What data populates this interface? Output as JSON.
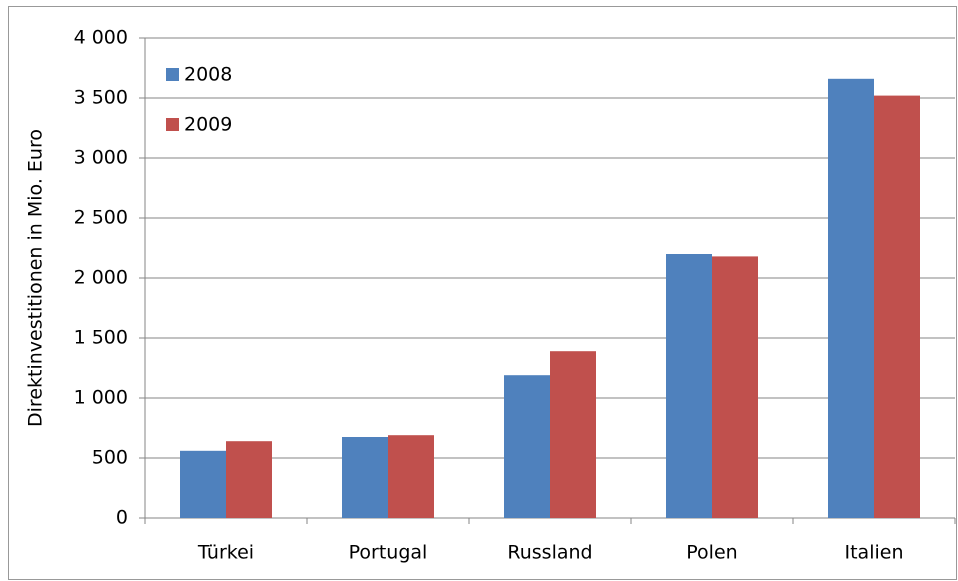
{
  "chart_data": {
    "type": "bar",
    "y_label": "Direktinvestitionen in Mio. Euro",
    "categories": [
      "Türkei",
      "Portugal",
      "Russland",
      "Polen",
      "Italien"
    ],
    "series": [
      {
        "name": "2008",
        "color": "#4f81bd",
        "values": [
          560,
          675,
          1190,
          2200,
          3660
        ]
      },
      {
        "name": "2009",
        "color": "#c0504d",
        "values": [
          640,
          690,
          1390,
          2180,
          3520
        ]
      }
    ],
    "ylim": [
      0,
      4000
    ],
    "yticks": [
      0,
      500,
      {
        "value": 1000,
        "label": "1 000"
      },
      {
        "value": 1500,
        "label": "1 500"
      },
      {
        "value": 2000,
        "label": "2 000"
      },
      {
        "value": 2500,
        "label": "2 500"
      },
      {
        "value": 3000,
        "label": "3 000"
      },
      {
        "value": 3500,
        "label": "3 500"
      },
      {
        "value": 4000,
        "label": "4 000"
      }
    ],
    "grid": true,
    "legend": "top-left"
  }
}
